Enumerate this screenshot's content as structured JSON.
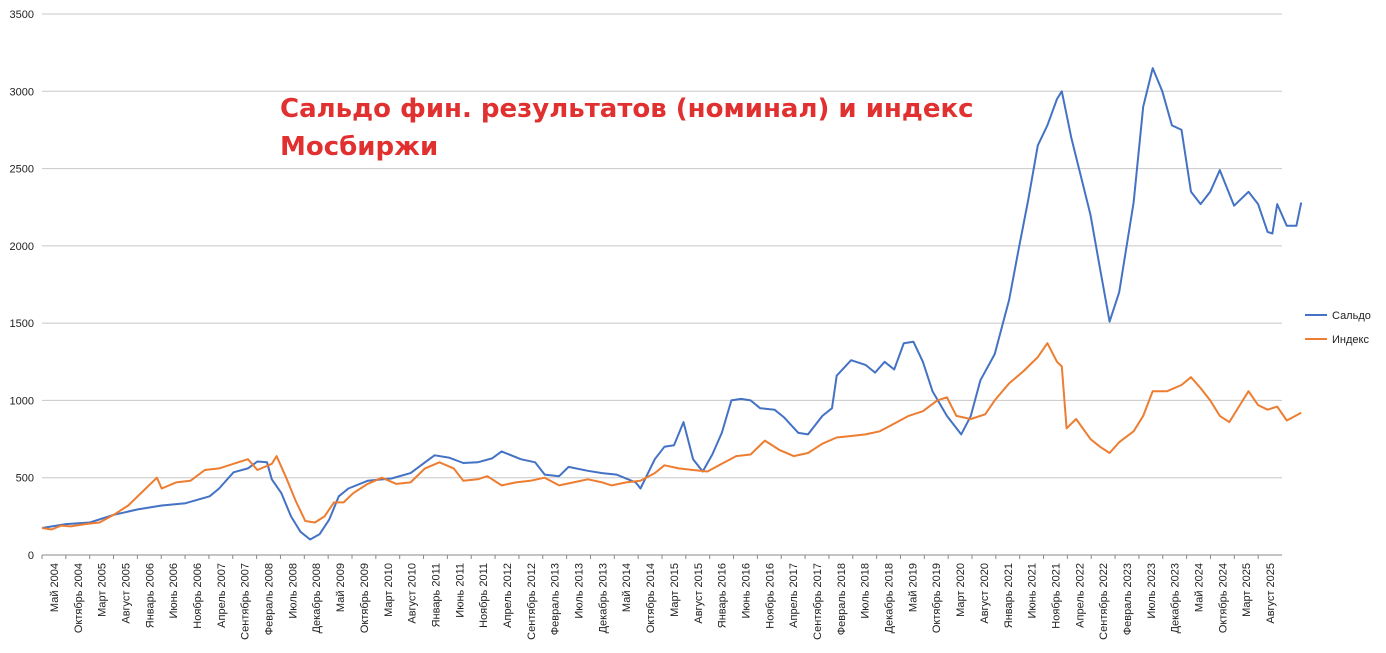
{
  "chart_data": {
    "type": "line",
    "title": "Сальдо фин. результатов (номинал) и индекс Мосбиржи",
    "xlabel": "",
    "ylabel": "",
    "ylim": [
      0,
      3500
    ],
    "yticks": [
      "0",
      "500",
      "1000",
      "1500",
      "2000",
      "2500",
      "3000",
      "3500"
    ],
    "grid": true,
    "legend_position": "right",
    "x_start": "2004-05",
    "x_end": "2025-12",
    "x_tick_labels": [
      "Май 2004",
      "Октябрь 2004",
      "Март 2005",
      "Август 2005",
      "Январь 2006",
      "Июнь 2006",
      "Ноябрь 2006",
      "Апрель 2007",
      "Сентябрь 2007",
      "Февраль 2008",
      "Июль 2008",
      "Декабрь 2008",
      "Май 2009",
      "Октябрь 2009",
      "Март 2010",
      "Август 2010",
      "Январь 2011",
      "Июнь 2011",
      "Ноябрь 2011",
      "Апрель 2012",
      "Сентябрь 2012",
      "Февраль 2013",
      "Июль 2013",
      "Декабрь 2013",
      "Май 2014",
      "Октябрь 2014",
      "Март 2015",
      "Август 2015",
      "Январь 2016",
      "Июнь 2016",
      "Ноябрь 2016",
      "Апрель 2017",
      "Сентябрь 2017",
      "Февраль 2018",
      "Июль 2018",
      "Декабрь 2018",
      "Май 2019",
      "Октябрь 2019",
      "Март 2020",
      "Август 2020",
      "Январь 2021",
      "Июнь 2021",
      "Ноябрь 2021",
      "Апрель 2022",
      "Сентябрь 2022",
      "Февраль 2023",
      "Июль 2023",
      "Декабрь 2023",
      "Май 2024",
      "Октябрь 2024",
      "Март 2025",
      "Август 2025"
    ],
    "series": [
      {
        "name": "Сальдо",
        "color": "#4472c4",
        "points": [
          [
            "2004-05",
            175
          ],
          [
            "2004-10",
            200
          ],
          [
            "2005-03",
            210
          ],
          [
            "2005-08",
            260
          ],
          [
            "2006-01",
            295
          ],
          [
            "2006-06",
            320
          ],
          [
            "2006-11",
            335
          ],
          [
            "2007-04",
            380
          ],
          [
            "2007-06",
            430
          ],
          [
            "2007-09",
            535
          ],
          [
            "2007-12",
            560
          ],
          [
            "2008-02",
            605
          ],
          [
            "2008-04",
            600
          ],
          [
            "2008-05",
            490
          ],
          [
            "2008-07",
            400
          ],
          [
            "2008-09",
            250
          ],
          [
            "2008-11",
            150
          ],
          [
            "2009-01",
            100
          ],
          [
            "2009-03",
            135
          ],
          [
            "2009-05",
            230
          ],
          [
            "2009-07",
            380
          ],
          [
            "2009-09",
            430
          ],
          [
            "2010-01",
            480
          ],
          [
            "2010-06",
            495
          ],
          [
            "2010-10",
            530
          ],
          [
            "2011-01",
            600
          ],
          [
            "2011-03",
            645
          ],
          [
            "2011-06",
            630
          ],
          [
            "2011-09",
            595
          ],
          [
            "2011-12",
            600
          ],
          [
            "2012-03",
            625
          ],
          [
            "2012-05",
            670
          ],
          [
            "2012-09",
            620
          ],
          [
            "2012-12",
            600
          ],
          [
            "2013-02",
            520
          ],
          [
            "2013-05",
            510
          ],
          [
            "2013-07",
            570
          ],
          [
            "2013-11",
            545
          ],
          [
            "2014-02",
            530
          ],
          [
            "2014-05",
            520
          ],
          [
            "2014-09",
            470
          ],
          [
            "2014-10",
            430
          ],
          [
            "2015-01",
            620
          ],
          [
            "2015-03",
            700
          ],
          [
            "2015-05",
            710
          ],
          [
            "2015-07",
            860
          ],
          [
            "2015-09",
            620
          ],
          [
            "2015-11",
            540
          ],
          [
            "2016-01",
            650
          ],
          [
            "2016-03",
            790
          ],
          [
            "2016-05",
            1000
          ],
          [
            "2016-07",
            1010
          ],
          [
            "2016-09",
            1000
          ],
          [
            "2016-11",
            950
          ],
          [
            "2017-02",
            940
          ],
          [
            "2017-04",
            890
          ],
          [
            "2017-07",
            790
          ],
          [
            "2017-09",
            780
          ],
          [
            "2017-12",
            900
          ],
          [
            "2018-02",
            950
          ],
          [
            "2018-03",
            1160
          ],
          [
            "2018-06",
            1260
          ],
          [
            "2018-09",
            1230
          ],
          [
            "2018-11",
            1180
          ],
          [
            "2019-01",
            1250
          ],
          [
            "2019-03",
            1200
          ],
          [
            "2019-05",
            1370
          ],
          [
            "2019-07",
            1380
          ],
          [
            "2019-09",
            1250
          ],
          [
            "2019-11",
            1060
          ],
          [
            "2020-02",
            900
          ],
          [
            "2020-05",
            780
          ],
          [
            "2020-07",
            900
          ],
          [
            "2020-09",
            1130
          ],
          [
            "2020-12",
            1300
          ],
          [
            "2021-03",
            1650
          ],
          [
            "2021-05",
            1980
          ],
          [
            "2021-07",
            2300
          ],
          [
            "2021-09",
            2650
          ],
          [
            "2021-11",
            2780
          ],
          [
            "2022-01",
            2950
          ],
          [
            "2022-02",
            3000
          ],
          [
            "2022-04",
            2700
          ],
          [
            "2022-06",
            2450
          ],
          [
            "2022-08",
            2200
          ],
          [
            "2022-10",
            1850
          ],
          [
            "2022-12",
            1510
          ],
          [
            "2023-02",
            1700
          ],
          [
            "2023-05",
            2280
          ],
          [
            "2023-07",
            2900
          ],
          [
            "2023-09",
            3150
          ],
          [
            "2023-11",
            3000
          ],
          [
            "2024-01",
            2780
          ],
          [
            "2024-03",
            2750
          ],
          [
            "2024-05",
            2350
          ],
          [
            "2024-07",
            2270
          ],
          [
            "2024-09",
            2350
          ],
          [
            "2024-11",
            2490
          ],
          [
            "2025-02",
            2260
          ],
          [
            "2025-05",
            2350
          ],
          [
            "2025-07",
            2270
          ],
          [
            "2025-09",
            2090
          ],
          [
            "2025-10",
            2080
          ],
          [
            "2025-11",
            2270
          ],
          [
            "2026-01",
            2130
          ],
          [
            "2026-03",
            2130
          ],
          [
            "2026-04",
            2280
          ]
        ]
      },
      {
        "name": "Индекс",
        "color": "#ed7d31",
        "points": [
          [
            "2004-05",
            175
          ],
          [
            "2004-07",
            165
          ],
          [
            "2004-09",
            190
          ],
          [
            "2004-11",
            185
          ],
          [
            "2005-02",
            200
          ],
          [
            "2005-05",
            210
          ],
          [
            "2005-08",
            260
          ],
          [
            "2005-11",
            320
          ],
          [
            "2006-02",
            410
          ],
          [
            "2006-05",
            500
          ],
          [
            "2006-06",
            430
          ],
          [
            "2006-09",
            470
          ],
          [
            "2006-12",
            480
          ],
          [
            "2007-03",
            550
          ],
          [
            "2007-06",
            560
          ],
          [
            "2007-09",
            590
          ],
          [
            "2007-12",
            620
          ],
          [
            "2008-02",
            550
          ],
          [
            "2008-05",
            590
          ],
          [
            "2008-06",
            640
          ],
          [
            "2008-08",
            500
          ],
          [
            "2008-10",
            350
          ],
          [
            "2008-12",
            220
          ],
          [
            "2009-02",
            210
          ],
          [
            "2009-04",
            250
          ],
          [
            "2009-06",
            340
          ],
          [
            "2009-08",
            340
          ],
          [
            "2009-10",
            400
          ],
          [
            "2010-01",
            460
          ],
          [
            "2010-04",
            500
          ],
          [
            "2010-07",
            460
          ],
          [
            "2010-10",
            470
          ],
          [
            "2011-01",
            560
          ],
          [
            "2011-04",
            600
          ],
          [
            "2011-07",
            560
          ],
          [
            "2011-09",
            480
          ],
          [
            "2011-12",
            490
          ],
          [
            "2012-02",
            510
          ],
          [
            "2012-05",
            450
          ],
          [
            "2012-08",
            470
          ],
          [
            "2012-11",
            480
          ],
          [
            "2013-02",
            500
          ],
          [
            "2013-05",
            450
          ],
          [
            "2013-08",
            470
          ],
          [
            "2013-11",
            490
          ],
          [
            "2014-02",
            470
          ],
          [
            "2014-04",
            450
          ],
          [
            "2014-07",
            470
          ],
          [
            "2014-10",
            480
          ],
          [
            "2015-01",
            530
          ],
          [
            "2015-03",
            580
          ],
          [
            "2015-06",
            560
          ],
          [
            "2015-09",
            550
          ],
          [
            "2015-12",
            540
          ],
          [
            "2016-03",
            590
          ],
          [
            "2016-06",
            640
          ],
          [
            "2016-09",
            650
          ],
          [
            "2016-12",
            740
          ],
          [
            "2017-03",
            680
          ],
          [
            "2017-06",
            640
          ],
          [
            "2017-09",
            660
          ],
          [
            "2017-12",
            720
          ],
          [
            "2018-03",
            760
          ],
          [
            "2018-06",
            770
          ],
          [
            "2018-09",
            780
          ],
          [
            "2018-12",
            800
          ],
          [
            "2019-03",
            850
          ],
          [
            "2019-06",
            900
          ],
          [
            "2019-09",
            930
          ],
          [
            "2019-12",
            1000
          ],
          [
            "2020-02",
            1020
          ],
          [
            "2020-04",
            900
          ],
          [
            "2020-07",
            880
          ],
          [
            "2020-10",
            910
          ],
          [
            "2020-12",
            1000
          ],
          [
            "2021-03",
            1110
          ],
          [
            "2021-06",
            1190
          ],
          [
            "2021-09",
            1280
          ],
          [
            "2021-11",
            1370
          ],
          [
            "2022-01",
            1250
          ],
          [
            "2022-02",
            1220
          ],
          [
            "2022-03",
            820
          ],
          [
            "2022-05",
            880
          ],
          [
            "2022-08",
            750
          ],
          [
            "2022-10",
            700
          ],
          [
            "2022-12",
            660
          ],
          [
            "2023-02",
            730
          ],
          [
            "2023-05",
            800
          ],
          [
            "2023-07",
            900
          ],
          [
            "2023-09",
            1060
          ],
          [
            "2023-12",
            1060
          ],
          [
            "2024-03",
            1100
          ],
          [
            "2024-05",
            1150
          ],
          [
            "2024-07",
            1080
          ],
          [
            "2024-09",
            1000
          ],
          [
            "2024-11",
            900
          ],
          [
            "2025-01",
            860
          ],
          [
            "2025-03",
            960
          ],
          [
            "2025-05",
            1060
          ],
          [
            "2025-07",
            970
          ],
          [
            "2025-09",
            940
          ],
          [
            "2025-11",
            960
          ],
          [
            "2026-01",
            870
          ],
          [
            "2026-04",
            920
          ]
        ]
      }
    ]
  }
}
